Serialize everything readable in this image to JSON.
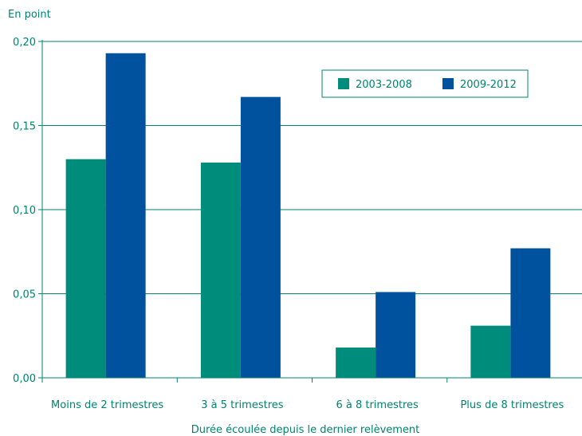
{
  "chart_data": {
    "type": "bar",
    "ylabel": "En point",
    "xlabel": "Durée écoulée depuis le dernier relèvement",
    "ylim": [
      0,
      0.2
    ],
    "y_ticks": [
      {
        "value": 0.0,
        "label": "0,00"
      },
      {
        "value": 0.05,
        "label": "0,05"
      },
      {
        "value": 0.1,
        "label": "0,10"
      },
      {
        "value": 0.15,
        "label": "0,15"
      },
      {
        "value": 0.2,
        "label": "0,20"
      }
    ],
    "categories": [
      "Moins de 2 trimestres",
      "3 à 5 trimestres",
      "6 à 8 trimestres",
      "Plus de 8 trimestres"
    ],
    "series": [
      {
        "name": "2003-2008",
        "color": "#008c7a",
        "values": [
          0.13,
          0.128,
          0.018,
          0.031
        ]
      },
      {
        "name": "2009-2012",
        "color": "#00519e",
        "values": [
          0.193,
          0.167,
          0.051,
          0.077
        ]
      }
    ],
    "grid": true,
    "legend_position": "top-right",
    "axis_color": "#00836f"
  }
}
